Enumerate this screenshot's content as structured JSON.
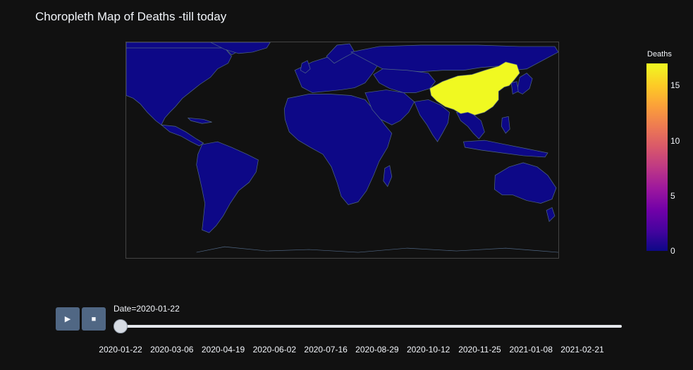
{
  "title": "Choropleth Map of Deaths -till today",
  "colorbar": {
    "title": "Deaths",
    "ticks": [
      "0",
      "5",
      "10",
      "15"
    ],
    "range": [
      0,
      17
    ],
    "colorscale": [
      "#0d0887",
      "#46039f",
      "#7201a8",
      "#9c179e",
      "#bd3786",
      "#d8576b",
      "#ed7953",
      "#fb9f3a",
      "#fdca26",
      "#f0f921"
    ]
  },
  "map": {
    "highlighted_country": "China",
    "highlight_color": "#f0f921",
    "base_color": "#0d0887",
    "border_color": "#506784"
  },
  "controls": {
    "play_icon": "play-icon",
    "stop_icon": "stop-icon"
  },
  "slider": {
    "current_label": "Date=2020-01-22",
    "current_index": 0,
    "ticks": [
      "2020-01-22",
      "2020-03-06",
      "2020-04-19",
      "2020-06-02",
      "2020-07-16",
      "2020-08-29",
      "2020-10-12",
      "2020-11-25",
      "2021-01-08",
      "2021-02-21"
    ]
  }
}
